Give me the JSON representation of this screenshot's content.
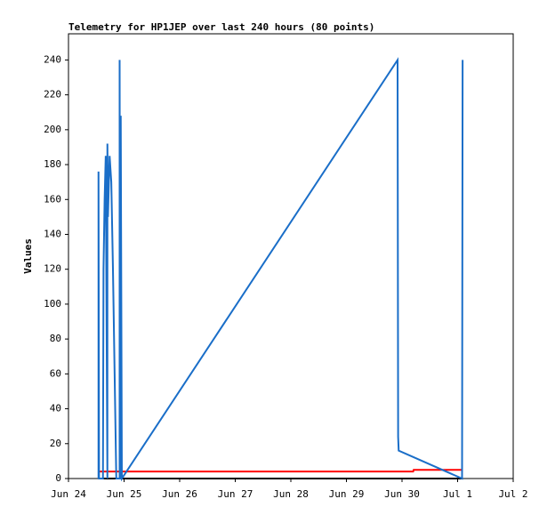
{
  "chart_data": {
    "type": "line",
    "title": "Telemetry for HP1JEP over last 240 hours (80 points)",
    "ylabel": "Values",
    "xlim": [
      0,
      8
    ],
    "ylim": [
      0,
      255
    ],
    "xticks": [
      {
        "value": 0,
        "label": "Jun 24"
      },
      {
        "value": 1,
        "label": "Jun 25"
      },
      {
        "value": 2,
        "label": "Jun 26"
      },
      {
        "value": 3,
        "label": "Jun 27"
      },
      {
        "value": 4,
        "label": "Jun 28"
      },
      {
        "value": 5,
        "label": "Jun 29"
      },
      {
        "value": 6,
        "label": "Jun 30"
      },
      {
        "value": 7,
        "label": "Jul 1"
      },
      {
        "value": 8,
        "label": "Jul 2"
      }
    ],
    "yticks": [
      0,
      20,
      40,
      60,
      80,
      100,
      120,
      140,
      160,
      180,
      200,
      220,
      240
    ],
    "series": [
      {
        "color": "#000000",
        "x": [
          0.54,
          7.09
        ],
        "values": [
          0,
          0
        ]
      },
      {
        "color": "#ff0000",
        "x": [
          0.54,
          6.2,
          6.21,
          7.09
        ],
        "values": [
          4,
          4,
          5,
          5
        ]
      },
      {
        "color": "#1a6ec8",
        "x": [
          0.54,
          0.54,
          0.55,
          0.62,
          0.63,
          0.65,
          0.67,
          0.7,
          0.7,
          0.71,
          0.74,
          0.77,
          0.8,
          0.83,
          0.86,
          0.92,
          0.92,
          0.93,
          0.94,
          0.94,
          0.96,
          5.92,
          5.93,
          5.94,
          7.08,
          7.09
        ],
        "values": [
          0,
          176,
          0,
          0,
          120,
          160,
          185,
          0,
          192,
          150,
          185,
          170,
          120,
          60,
          0,
          0,
          240,
          0,
          0,
          208,
          0,
          240,
          24,
          16,
          0,
          240
        ]
      }
    ]
  }
}
